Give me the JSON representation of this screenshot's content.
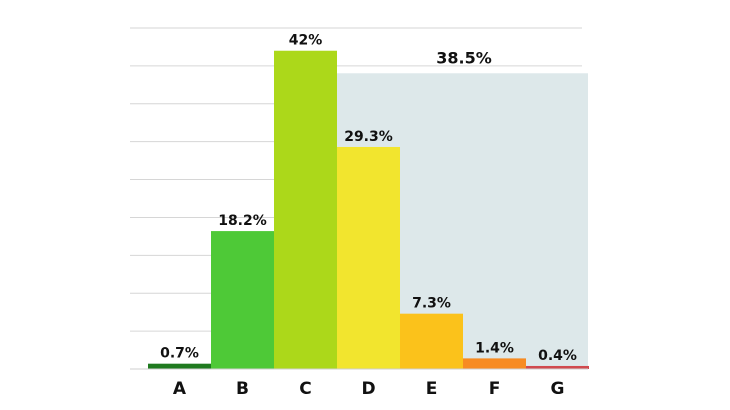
{
  "chart_data": {
    "type": "bar",
    "title": "",
    "xlabel": "",
    "ylabel": "",
    "ylim": [
      0,
      45
    ],
    "grid": true,
    "categories": [
      "A",
      "B",
      "C",
      "D",
      "E",
      "F",
      "G"
    ],
    "values": [
      0.7,
      18.2,
      42,
      29.3,
      7.3,
      1.4,
      0.4
    ],
    "value_labels": [
      "0.7%",
      "18.2%",
      "42%",
      "29.3%",
      "7.3%",
      "1.4%",
      "0.4%"
    ],
    "colors": [
      "#1f7a1f",
      "#4ec937",
      "#acd81a",
      "#f2e52e",
      "#fbc21b",
      "#f78b22",
      "#d04a4e"
    ],
    "highlight": {
      "label": "38.5%",
      "value": 38.5,
      "categories": [
        "D",
        "E",
        "F",
        "G"
      ],
      "color": "#dde8ea"
    }
  }
}
